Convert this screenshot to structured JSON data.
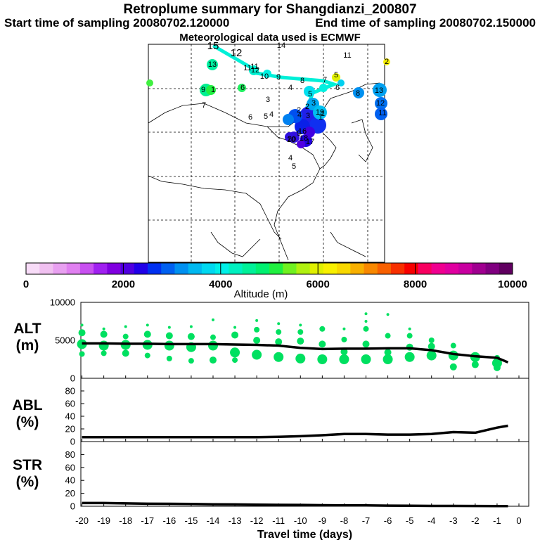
{
  "header": {
    "title": "Retroplume summary for Shangdianzi_200807",
    "start": "Start time of sampling 20080702.120000",
    "end": "End time of sampling 20080702.150000",
    "met": "Meteorological data used is ECMWF"
  },
  "colorbar": {
    "ticks": [
      "0",
      "2000",
      "4000",
      "6000",
      "8000",
      "10000"
    ],
    "label": "Altitude (m)",
    "colors": [
      "#f8dcf8",
      "#f0c0f0",
      "#e8a0f0",
      "#e080f0",
      "#c850f0",
      "#a020f0",
      "#8000e0",
      "#5000e0",
      "#2000e8",
      "#0030f0",
      "#0060f0",
      "#0090f0",
      "#00b8f0",
      "#00d8f0",
      "#00f0e8",
      "#00f0c0",
      "#00f098",
      "#00f070",
      "#20f040",
      "#70f020",
      "#b0f010",
      "#e0f000",
      "#f8f000",
      "#f8d800",
      "#f8b000",
      "#f88800",
      "#f86000",
      "#f83000",
      "#f80000",
      "#f80060",
      "#f00090",
      "#e000a0",
      "#c800a0",
      "#a00090",
      "#800080",
      "#600060"
    ]
  },
  "map": {
    "trajectory_labels": [
      "15",
      "12",
      "11",
      "10",
      "9",
      "8",
      "7",
      "6",
      "5",
      "4",
      "3",
      "2",
      "1",
      "13",
      "12",
      "11",
      "9",
      "1",
      "6",
      "5",
      "4",
      "3",
      "7",
      "6",
      "5",
      "4",
      "3",
      "2",
      "1",
      "8",
      "9",
      "11",
      "10",
      "17",
      "18",
      "19",
      "20",
      "13",
      "12",
      "11",
      "14",
      "16",
      "4",
      "5",
      "2"
    ]
  },
  "chart_data": [
    {
      "type": "line",
      "panel": "ALT",
      "ylabel": "ALT\n(m)",
      "ylim": [
        0,
        10000
      ],
      "yticks": [
        "0",
        "5000",
        "10000"
      ],
      "x": [
        -20,
        -19,
        -18,
        -17,
        -16,
        -15,
        -14,
        -13,
        -12,
        -11,
        -10,
        -9,
        -8,
        -7,
        -6,
        -5,
        -4,
        -3,
        -2,
        -1,
        -0.5
      ],
      "values": [
        4600,
        4600,
        4550,
        4550,
        4500,
        4500,
        4500,
        4450,
        4400,
        4300,
        4000,
        3850,
        3900,
        3900,
        3950,
        3950,
        3700,
        3200,
        2900,
        2700,
        2100
      ],
      "cluster_color": "#00e060",
      "clusters": [
        {
          "x": -20,
          "y": [
            4500,
            6000,
            3200,
            7000
          ]
        },
        {
          "x": -19,
          "y": [
            4300,
            5800,
            3300,
            6500
          ]
        },
        {
          "x": -18,
          "y": [
            4400,
            3300,
            5500,
            6800
          ]
        },
        {
          "x": -17,
          "y": [
            4400,
            5800,
            3000,
            7000
          ]
        },
        {
          "x": -16,
          "y": [
            4300,
            5600,
            2600,
            6700
          ]
        },
        {
          "x": -15,
          "y": [
            4100,
            5500,
            2300,
            6800
          ]
        },
        {
          "x": -14,
          "y": [
            4300,
            2400,
            5400,
            7700
          ]
        },
        {
          "x": -13,
          "y": [
            3400,
            5700,
            2400,
            6700
          ]
        },
        {
          "x": -12,
          "y": [
            3100,
            5000,
            6400,
            7600
          ]
        },
        {
          "x": -11,
          "y": [
            2800,
            4800,
            6100,
            7200
          ]
        },
        {
          "x": -10,
          "y": [
            2600,
            4900,
            6100,
            7000
          ]
        },
        {
          "x": -9,
          "y": [
            2500,
            4500,
            6500
          ]
        },
        {
          "x": -8,
          "y": [
            2500,
            3500,
            5100,
            6500
          ]
        },
        {
          "x": -7,
          "y": [
            2500,
            4500,
            6500,
            7500,
            8500
          ]
        },
        {
          "x": -6,
          "y": [
            2500,
            3400,
            5600,
            8400
          ]
        },
        {
          "x": -5,
          "y": [
            2800,
            4100,
            5600,
            6500
          ]
        },
        {
          "x": -4,
          "y": [
            3000,
            4200,
            5000
          ]
        },
        {
          "x": -3,
          "y": [
            3000,
            1500,
            4300
          ]
        },
        {
          "x": -2,
          "y": [
            2800,
            1800
          ]
        },
        {
          "x": -1,
          "y": [
            2000,
            1400,
            2700
          ]
        }
      ]
    },
    {
      "type": "line",
      "panel": "ABL",
      "ylabel": "ABL\n(%)",
      "ylim": [
        0,
        100
      ],
      "yticks": [
        "0",
        "20",
        "40",
        "60",
        "80"
      ],
      "x": [
        -20,
        -19,
        -18,
        -17,
        -16,
        -15,
        -14,
        -13,
        -12,
        -11,
        -10,
        -9,
        -8,
        -7,
        -6,
        -5,
        -4,
        -3,
        -2,
        -1,
        -0.5
      ],
      "values": [
        7,
        7,
        7,
        7,
        7,
        7,
        7,
        7,
        7,
        7.5,
        8.5,
        10,
        12,
        12,
        11,
        11,
        12,
        15,
        14,
        22,
        25
      ]
    },
    {
      "type": "line",
      "panel": "STR",
      "ylabel": "STR\n(%)",
      "ylim": [
        0,
        100
      ],
      "yticks": [
        "0",
        "20",
        "40",
        "60",
        "80"
      ],
      "x": [
        -20,
        -19,
        -18,
        -17,
        -16,
        -15,
        -14,
        -13,
        -12,
        -11,
        -10,
        -9,
        -8,
        -7,
        -6,
        -5,
        -4,
        -3,
        -2,
        -1,
        -0.5
      ],
      "values": [
        5,
        5,
        4.5,
        4,
        3.8,
        3.5,
        3,
        2.8,
        2.5,
        2.2,
        2,
        1.6,
        1.4,
        1.3,
        1,
        0.8,
        0.6,
        0.5,
        0.4,
        0.3,
        0.3
      ],
      "xlabel": "Travel time (days)",
      "xticks": [
        "-20",
        "-19",
        "-18",
        "-17",
        "-16",
        "-15",
        "-14",
        "-13",
        "-12",
        "-11",
        "-10",
        "-9",
        "-8",
        "-7",
        "-6",
        "-5",
        "-4",
        "-3",
        "-2",
        "-1",
        "0"
      ]
    }
  ]
}
